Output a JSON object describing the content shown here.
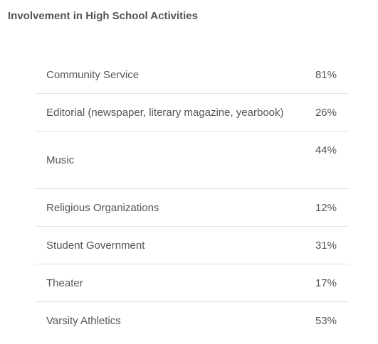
{
  "section": {
    "title": "Involvement in High School Activities"
  },
  "activities": [
    {
      "label": "Community Service",
      "value": "81%"
    },
    {
      "label": "Editorial (newspaper, literary magazine, yearbook)",
      "value": "26%"
    },
    {
      "label": "Music",
      "value": "44%"
    },
    {
      "label": "Religious Organizations",
      "value": "12%"
    },
    {
      "label": "Student Government",
      "value": "31%"
    },
    {
      "label": "Theater",
      "value": "17%"
    },
    {
      "label": "Varsity Athletics",
      "value": "53%"
    }
  ]
}
